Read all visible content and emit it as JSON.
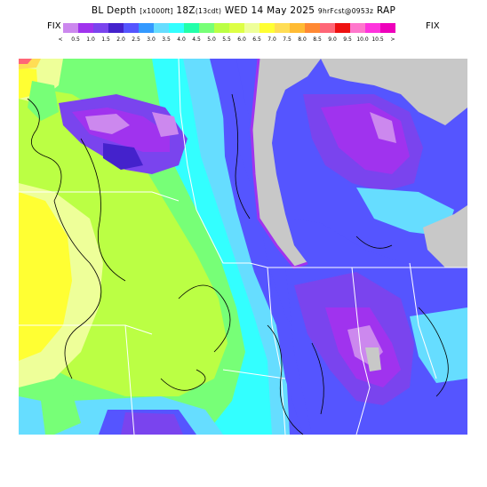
{
  "title": {
    "main": "BL Depth",
    "units": "[x1000ft]",
    "time": "18Z",
    "run_note": "(13cdt)",
    "date": "WED 14 May 2025",
    "forecast": "9hrFcst@0953z",
    "model": "RAP"
  },
  "fix_left": "FIX",
  "fix_right": "FIX",
  "colorbar": {
    "colors": [
      "#c8c8c8",
      "#cc88ee",
      "#a033ee",
      "#7a44ee",
      "#4422cc",
      "#5555ff",
      "#3399ff",
      "#66ddff",
      "#33ffff",
      "#22ffaa",
      "#77ff77",
      "#bbff44",
      "#ddff44",
      "#eeff99",
      "#ffff33",
      "#ffdd55",
      "#ffbb33",
      "#ff8833",
      "#ff6677",
      "#ee1111",
      "#ff77cc",
      "#ff33dd",
      "#ee00bb"
    ],
    "labels": [
      "<",
      "0.5",
      "1.0",
      "1.5",
      "2.0",
      "2.5",
      "3.0",
      "3.5",
      "4.0",
      "4.5",
      "5.0",
      "5.5",
      "6.0",
      "6.5",
      "7.0",
      "7.5",
      "8.0",
      "8.5",
      "9.0",
      "9.5",
      "10.0",
      "10.5",
      ">"
    ]
  }
}
